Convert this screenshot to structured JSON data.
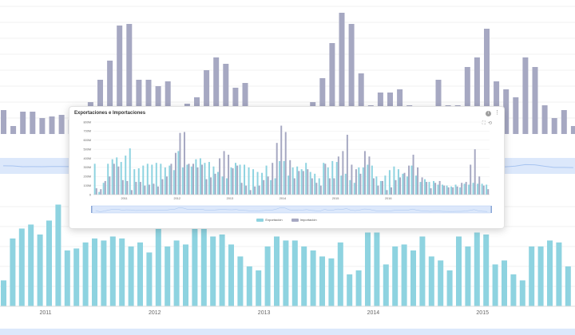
{
  "page": {
    "background": "#ffffff"
  },
  "card": {
    "title": "Exportaciones e Importaciones",
    "info_icon": "info-icon",
    "menu_icon": "more-vertical-icon",
    "zoom_icons": [
      "zoom-area-icon",
      "restore-zoom-icon"
    ]
  },
  "colors": {
    "exports": "#8ed3e0",
    "imports": "#a6a8c2",
    "grid": "#eeeeee",
    "axis_text": "#666666",
    "slider_fill": "#dce8fb",
    "slider_line": "#a8c4f0"
  },
  "chart_data": {
    "type": "bar",
    "title": "",
    "ylim": [
      0,
      800
    ],
    "y_tick_labels": [
      "0",
      "100M",
      "200M",
      "300M",
      "400M",
      "500M",
      "600M",
      "700M",
      "800M"
    ],
    "year_labels": [
      "2011",
      "2012",
      "2013",
      "2014",
      "2015",
      "2016"
    ],
    "start_year": 2010,
    "start_month": 6,
    "grid": true,
    "legend_position": "bottom",
    "series": [
      {
        "name": "Exportación",
        "values": [
          340,
          30,
          130,
          340,
          390,
          410,
          360,
          430,
          510,
          280,
          290,
          320,
          340,
          330,
          350,
          340,
          300,
          320,
          270,
          480,
          300,
          330,
          310,
          390,
          400,
          350,
          360,
          310,
          250,
          200,
          180,
          300,
          350,
          330,
          330,
          300,
          280,
          250,
          240,
          320,
          160,
          180,
          370,
          370,
          210,
          300,
          310,
          280,
          350,
          250,
          230,
          180,
          350,
          300,
          370,
          360,
          210,
          230,
          160,
          130,
          300,
          300,
          330,
          320,
          200,
          150,
          210,
          270,
          310,
          280,
          230,
          200,
          320,
          210,
          140,
          170,
          140,
          150,
          110,
          110,
          100,
          90,
          110,
          80,
          120,
          110,
          130,
          120,
          120,
          110
        ]
      },
      {
        "name": "Importación",
        "values": [
          70,
          60,
          150,
          200,
          340,
          310,
          160,
          150,
          50,
          140,
          140,
          100,
          110,
          120,
          90,
          170,
          200,
          340,
          460,
          680,
          690,
          340,
          340,
          300,
          330,
          170,
          190,
          230,
          400,
          480,
          440,
          290,
          320,
          130,
          100,
          50,
          90,
          100,
          160,
          200,
          350,
          570,
          760,
          690,
          380,
          180,
          260,
          260,
          280,
          180,
          130,
          100,
          340,
          180,
          180,
          420,
          480,
          660,
          330,
          280,
          230,
          480,
          420,
          180,
          100,
          150,
          50,
          80,
          160,
          190,
          240,
          320,
          440,
          300,
          190,
          140,
          70,
          130,
          150,
          100,
          80,
          80,
          90,
          130,
          140,
          330,
          500,
          200,
          100,
          60
        ]
      }
    ]
  }
}
